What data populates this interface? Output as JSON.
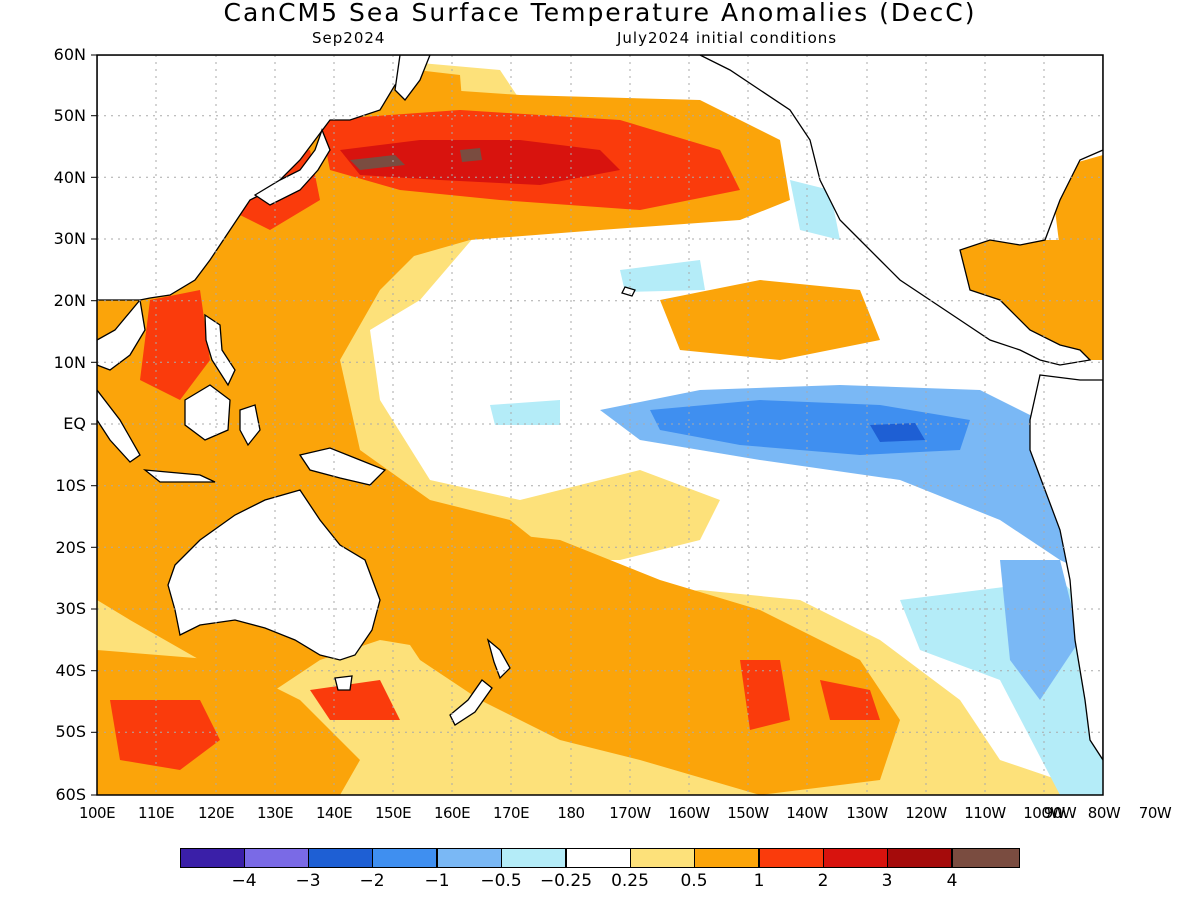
{
  "header": {
    "title": "CanCM5 Sea Surface Temperature Anomalies (DecC)",
    "valid": "Sep2024",
    "init": "July2024 initial conditions"
  },
  "map": {
    "lat_labels": [
      "60N",
      "50N",
      "40N",
      "30N",
      "20N",
      "10N",
      "EQ",
      "10S",
      "20S",
      "30S",
      "40S",
      "50S",
      "60S"
    ],
    "lon_labels": [
      "100E",
      "110E",
      "120E",
      "130E",
      "140E",
      "150E",
      "160E",
      "170E",
      "180",
      "170W",
      "160W",
      "150W",
      "140W",
      "130W",
      "120W",
      "110W",
      "100W",
      "90W",
      "80W",
      "70W"
    ],
    "lat_range": [
      -60,
      60
    ],
    "lon_range": [
      "100E",
      "70W"
    ],
    "grid": true
  },
  "colorbar": {
    "colors": [
      "#3a1fa8",
      "#7a6ae6",
      "#1e5fd4",
      "#3f8ff0",
      "#7ab8f5",
      "#b4ecf8",
      "#ffffff",
      "#fde17a",
      "#fba40a",
      "#fa3b0c",
      "#d8130e",
      "#a50b0b",
      "#7a4c40"
    ],
    "labels": [
      "−4",
      "−3",
      "−2",
      "−1",
      "−0.5",
      "−0.25",
      "0.25",
      "0.5",
      "1",
      "2",
      "3",
      "4"
    ]
  },
  "colors": {
    "land_outline": "#000000",
    "grid": "#aaaaaa"
  }
}
